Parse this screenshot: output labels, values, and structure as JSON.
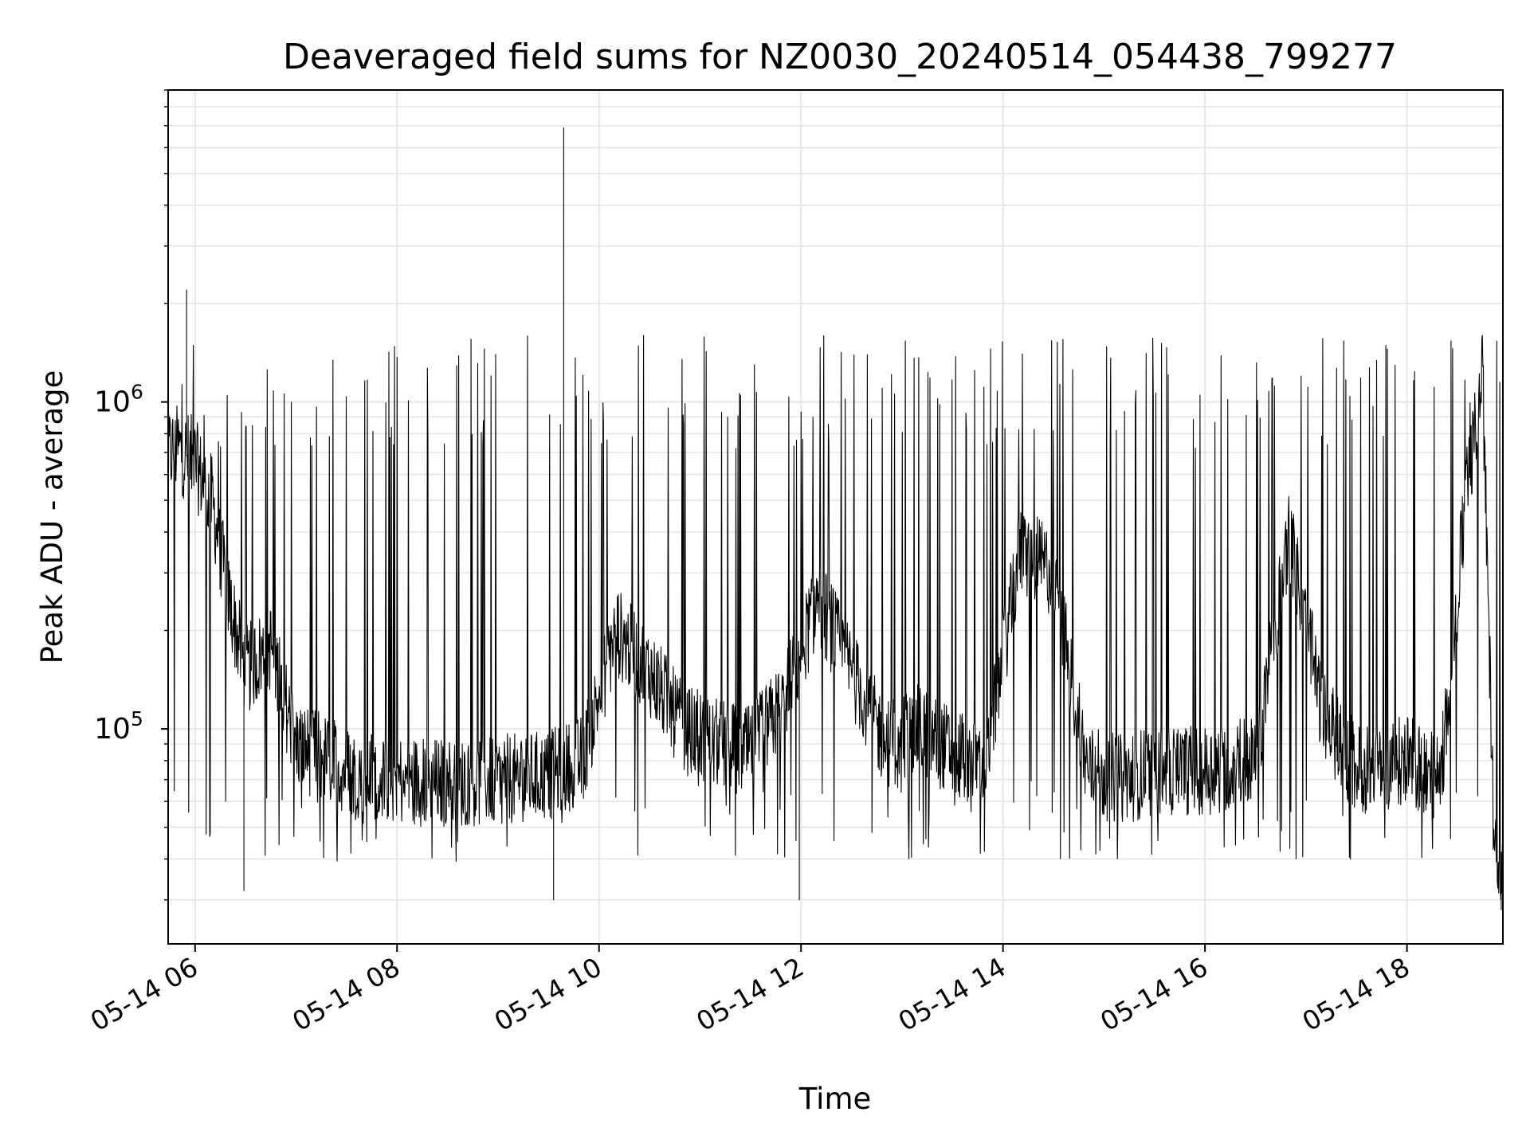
{
  "chart_data": {
    "type": "line",
    "title": "Deaveraged field sums for NZ0030_20240514_054438_799277",
    "xlabel": "Time",
    "ylabel": "Peak ADU - average",
    "yscale": "log",
    "ylim": [
      22000,
      9000000
    ],
    "xlim": [
      "2024-05-14 05:44",
      "2024-05-14 18:57"
    ],
    "x_ticks": [
      {
        "value": "2024-05-14 06:00",
        "label": "05-14 06"
      },
      {
        "value": "2024-05-14 08:00",
        "label": "05-14 08"
      },
      {
        "value": "2024-05-14 10:00",
        "label": "05-14 10"
      },
      {
        "value": "2024-05-14 12:00",
        "label": "05-14 12"
      },
      {
        "value": "2024-05-14 14:00",
        "label": "05-14 14"
      },
      {
        "value": "2024-05-14 16:00",
        "label": "05-14 16"
      },
      {
        "value": "2024-05-14 18:00",
        "label": "05-14 18"
      }
    ],
    "y_ticks": [
      {
        "value": 100000,
        "base": "10",
        "exp": "5"
      },
      {
        "value": 1000000,
        "base": "10",
        "exp": "6"
      }
    ],
    "grid": true,
    "line_color": "#000000",
    "grid_color": "#e6e6e6",
    "series": [
      {
        "x": [
          "2024-05-14 05:44",
          "2024-05-14 05:50",
          "2024-05-14 06:00",
          "2024-05-14 06:10",
          "2024-05-14 06:20",
          "2024-05-14 06:30",
          "2024-05-14 06:45",
          "2024-05-14 07:00",
          "2024-05-14 07:30",
          "2024-05-14 08:00",
          "2024-05-14 08:30",
          "2024-05-14 09:00",
          "2024-05-14 09:30",
          "2024-05-14 09:50",
          "2024-05-14 10:10",
          "2024-05-14 10:30",
          "2024-05-14 10:50",
          "2024-05-14 11:10",
          "2024-05-14 11:30",
          "2024-05-14 11:50",
          "2024-05-14 12:10",
          "2024-05-14 12:30",
          "2024-05-14 12:50",
          "2024-05-14 13:10",
          "2024-05-14 13:30",
          "2024-05-14 13:50",
          "2024-05-14 14:10",
          "2024-05-14 14:30",
          "2024-05-14 14:50",
          "2024-05-14 15:10",
          "2024-05-14 15:30",
          "2024-05-14 16:00",
          "2024-05-14 16:30",
          "2024-05-14 16:50",
          "2024-05-14 17:10",
          "2024-05-14 17:30",
          "2024-05-14 18:00",
          "2024-05-14 18:20",
          "2024-05-14 18:35",
          "2024-05-14 18:45",
          "2024-05-14 18:52",
          "2024-05-14 18:57"
        ],
        "values": [
          700000,
          720000,
          650000,
          500000,
          250000,
          150000,
          180000,
          90000,
          75000,
          70000,
          68000,
          70000,
          72000,
          80000,
          200000,
          150000,
          100000,
          90000,
          85000,
          120000,
          250000,
          150000,
          90000,
          100000,
          85000,
          80000,
          350000,
          300000,
          75000,
          70000,
          75000,
          75000,
          80000,
          400000,
          110000,
          75000,
          80000,
          70000,
          500000,
          1200000,
          40000,
          35000
        ]
      }
    ],
    "spikes": [
      {
        "x": "2024-05-14 05:55",
        "value": 2200000
      },
      {
        "x": "2024-05-14 09:39",
        "value": 6900000
      },
      {
        "x": "2024-05-14 09:33",
        "value": 30000
      },
      {
        "x": "2024-05-14 06:29",
        "value": 32000
      },
      {
        "x": "2024-05-14 11:59",
        "value": 30000
      },
      {
        "x": "2024-05-14 18:56",
        "value": 28000
      }
    ]
  }
}
